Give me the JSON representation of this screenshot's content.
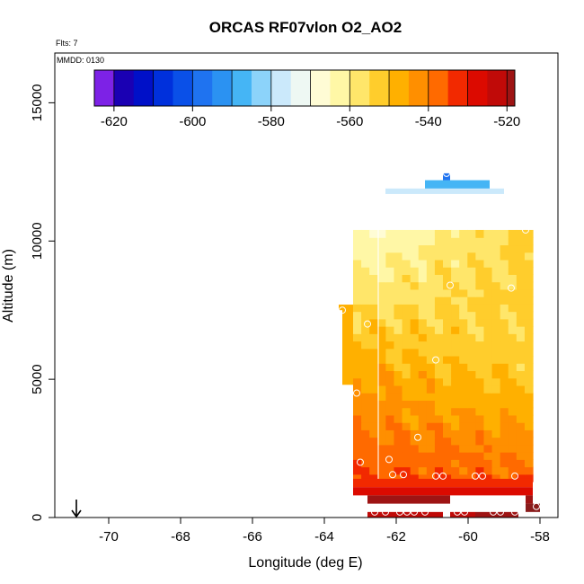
{
  "chart_data": {
    "type": "heatmap",
    "title": "ORCAS RF07vlon O2_AO2",
    "subtitle_top": "Flts: 7",
    "subtitle_inner": "MMDD: 0130",
    "xlabel": "Longitude (deg E)",
    "ylabel": "Altitude (m)",
    "xlim": [
      -71.5,
      -57.5
    ],
    "ylim": [
      0,
      16800
    ],
    "xticks": [
      -70,
      -68,
      -66,
      -64,
      -62,
      -60,
      -58
    ],
    "xtick_labels": [
      "-70",
      "-68",
      "-66",
      "-64",
      "-62",
      "-60",
      "-58"
    ],
    "yticks": [
      0,
      5000,
      10000,
      15000
    ],
    "ytick_labels": [
      "0",
      "5000",
      "10000",
      "15000"
    ],
    "colorbar": {
      "min": -625,
      "max": -518,
      "ticks": [
        -620,
        -600,
        -580,
        -560,
        -540,
        -520
      ],
      "tick_labels": [
        "-620",
        "-600",
        "-580",
        "-560",
        "-540",
        "-520"
      ],
      "segment_edges": [
        -625,
        -620,
        -615,
        -610,
        -605,
        -600,
        -595,
        -590,
        -585,
        -580,
        -575,
        -570,
        -565,
        -560,
        -555,
        -550,
        -545,
        -540,
        -535,
        -530,
        -525,
        -520,
        -518
      ],
      "colors": [
        "#7d22e6",
        "#1a00b3",
        "#0010c8",
        "#0030dc",
        "#0a50e8",
        "#1f73f0",
        "#2b92f2",
        "#45b5f5",
        "#8cd3fa",
        "#cbe9fb",
        "#eef8f3",
        "#fffcd5",
        "#fff7a6",
        "#ffe66a",
        "#ffcd2c",
        "#ffb000",
        "#ff8f00",
        "#ff6a00",
        "#f22900",
        "#dc0a00",
        "#c00a08",
        "#9e1414",
        "#8a1c1c"
      ]
    },
    "field": {
      "x_range": [
        -63.2,
        -58.2
      ],
      "y_range": [
        1300,
        10400
      ],
      "left_edge": -63.2,
      "top_edge_alt": 10400,
      "stripe_lon": -62.5,
      "corner_values": {
        "top_left": -567,
        "top_right": -553,
        "mid_left": -548,
        "mid_right": -554,
        "bottom_left": -535,
        "bottom_right": -537
      }
    },
    "extra_cells": [
      {
        "lon0": -63.6,
        "lon1": -63.2,
        "alt0": 7500,
        "alt1": 7700,
        "value": -546
      },
      {
        "lon0": -63.5,
        "lon1": -63.2,
        "alt0": 4800,
        "alt1": 7600,
        "value": -548
      },
      {
        "lon0": -62.3,
        "lon1": -59.0,
        "alt0": 11700,
        "alt1": 11900,
        "value": -577
      },
      {
        "lon0": -61.2,
        "lon1": -59.4,
        "alt0": 11900,
        "alt1": 12200,
        "value": -589
      },
      {
        "lon0": -60.7,
        "lon1": -60.5,
        "alt0": 12200,
        "alt1": 12450,
        "value": -597
      },
      {
        "lon0": -63.2,
        "lon1": -58.2,
        "alt0": 1100,
        "alt1": 1400,
        "value": -532
      },
      {
        "lon0": -63.2,
        "lon1": -58.2,
        "alt0": 800,
        "alt1": 1100,
        "value": -526
      },
      {
        "lon0": -62.8,
        "lon1": -60.5,
        "alt0": 500,
        "alt1": 800,
        "value": -520
      },
      {
        "lon0": -58.4,
        "lon1": -58.2,
        "alt0": 500,
        "alt1": 800,
        "value": -520
      },
      {
        "lon0": -58.4,
        "lon1": -58.0,
        "alt0": 200,
        "alt1": 500,
        "value": -518
      },
      {
        "lon0": -62.8,
        "lon1": -60.7,
        "alt0": 0,
        "alt1": 200,
        "value": -522
      },
      {
        "lon0": -60.5,
        "lon1": -59.8,
        "alt0": 0,
        "alt1": 200,
        "value": -522
      },
      {
        "lon0": -59.8,
        "lon1": -58.6,
        "alt0": 0,
        "alt1": 200,
        "value": -520
      }
    ],
    "points": [
      {
        "lon": -60.6,
        "alt": 12450
      },
      {
        "lon": -58.4,
        "alt": 10400
      },
      {
        "lon": -58.8,
        "alt": 8300
      },
      {
        "lon": -60.5,
        "alt": 8400
      },
      {
        "lon": -63.5,
        "alt": 7500
      },
      {
        "lon": -62.8,
        "alt": 7000
      },
      {
        "lon": -60.9,
        "alt": 5700
      },
      {
        "lon": -63.1,
        "alt": 4500
      },
      {
        "lon": -61.4,
        "alt": 2900
      },
      {
        "lon": -62.2,
        "alt": 2100
      },
      {
        "lon": -63.0,
        "alt": 2000
      },
      {
        "lon": -62.1,
        "alt": 1550
      },
      {
        "lon": -61.8,
        "alt": 1550
      },
      {
        "lon": -60.9,
        "alt": 1500
      },
      {
        "lon": -60.7,
        "alt": 1500
      },
      {
        "lon": -59.8,
        "alt": 1500
      },
      {
        "lon": -59.6,
        "alt": 1500
      },
      {
        "lon": -58.7,
        "alt": 1500
      },
      {
        "lon": -62.6,
        "alt": 200
      },
      {
        "lon": -62.3,
        "alt": 200
      },
      {
        "lon": -61.9,
        "alt": 200
      },
      {
        "lon": -61.7,
        "alt": 200
      },
      {
        "lon": -61.5,
        "alt": 200
      },
      {
        "lon": -61.2,
        "alt": 200
      },
      {
        "lon": -60.3,
        "alt": 200
      },
      {
        "lon": -60.1,
        "alt": 200
      },
      {
        "lon": -59.3,
        "alt": 200
      },
      {
        "lon": -59.1,
        "alt": 200
      },
      {
        "lon": -58.7,
        "alt": 200
      },
      {
        "lon": -58.1,
        "alt": 400
      }
    ],
    "arrow_marker": {
      "lon": -70.9,
      "alt": 0
    }
  }
}
